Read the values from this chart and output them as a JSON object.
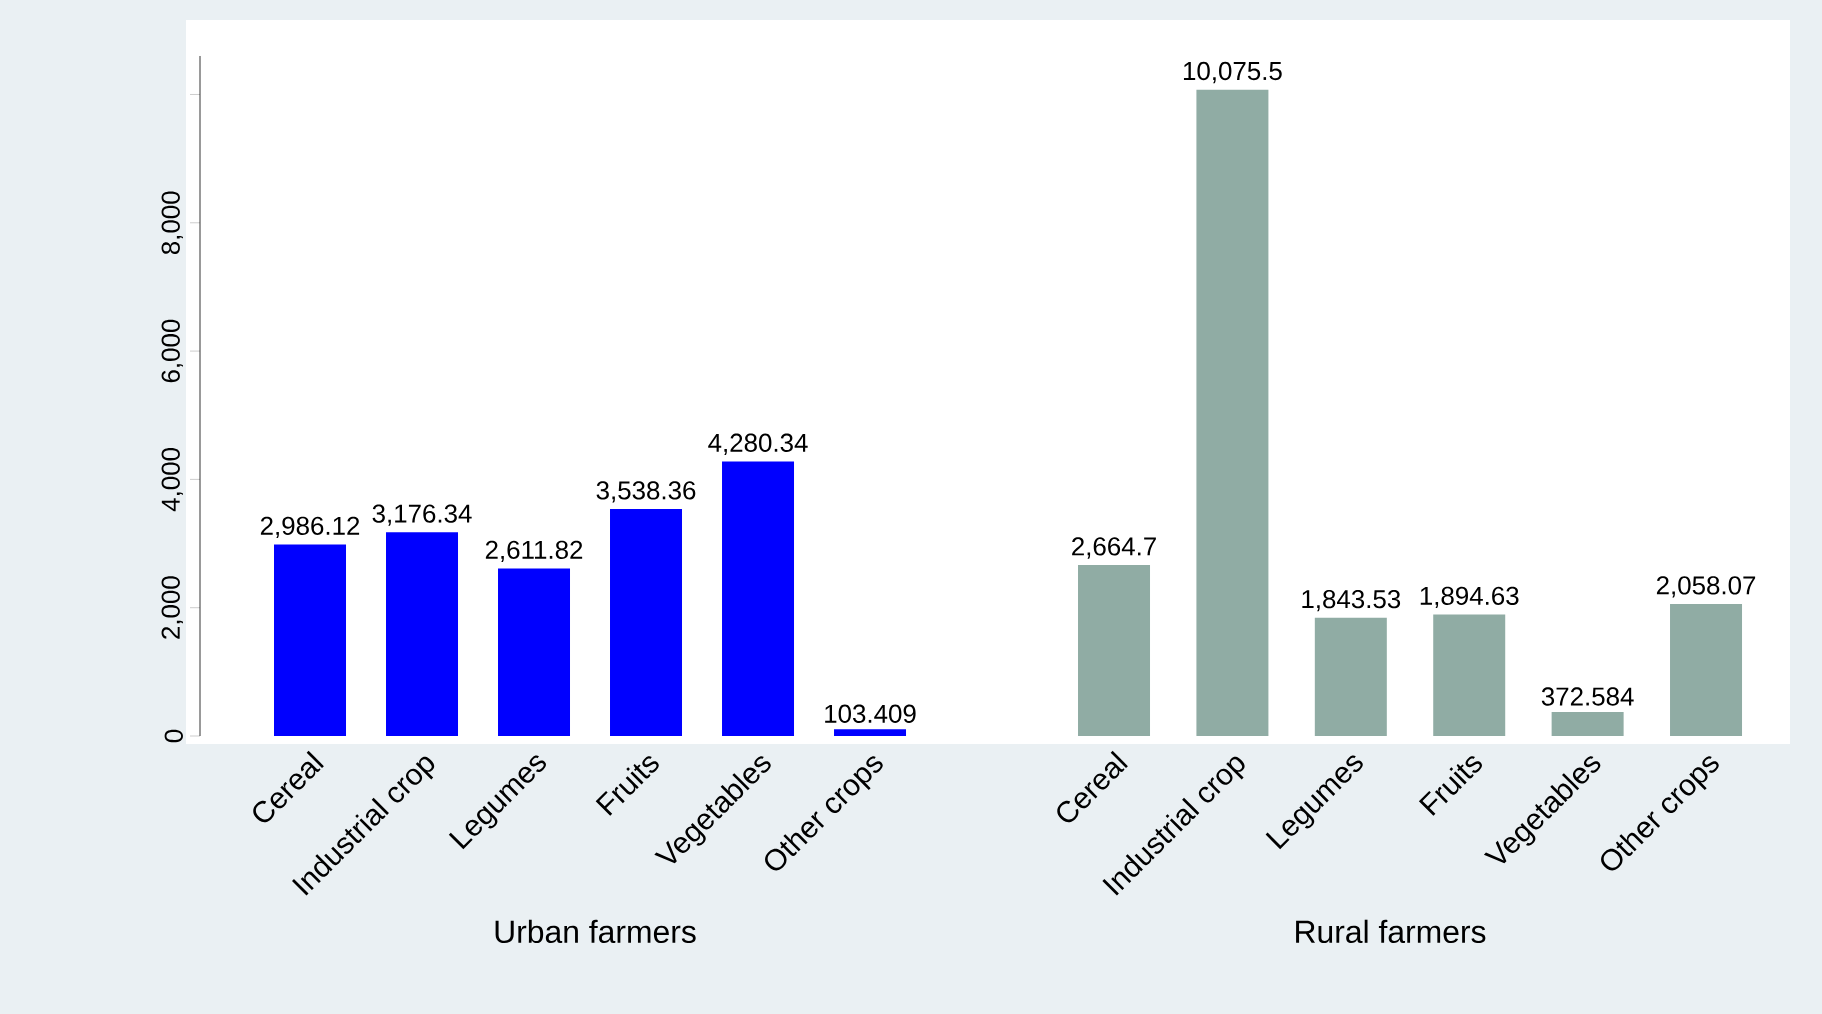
{
  "chart_data": [
    {
      "type": "bar",
      "xlabel": "Urban farmers",
      "categories": [
        "Cereal",
        "Industrial crop",
        "Legumes",
        "Fruits",
        "Vegetables",
        "Other crops"
      ],
      "values": [
        2986.12,
        3176.34,
        2611.82,
        3538.36,
        4280.34,
        103.409
      ],
      "color": "#0000ff",
      "value_labels": [
        "2,986.12",
        "3,176.34",
        "2,611.82",
        "3,538.36",
        "4,280.34",
        "103.409"
      ],
      "ylim": [
        0,
        10600
      ],
      "yticks": [
        0,
        {
          "value": 2000,
          "label": "2,000"
        },
        {
          "value": 4000,
          "label": "4,000"
        },
        {
          "value": 6000,
          "label": "6,000"
        },
        {
          "value": 8000,
          "label": "8,000"
        },
        {
          "value": 10000,
          "label": null
        }
      ]
    },
    {
      "type": "bar",
      "xlabel": "Rural farmers",
      "categories": [
        "Cereal",
        "Industrial crop",
        "Legumes",
        "Fruits",
        "Vegetables",
        "Other crops"
      ],
      "values": [
        2664.7,
        10075.5,
        1843.53,
        1894.63,
        372.584,
        2058.07
      ],
      "color": "#90aca4",
      "value_labels": [
        "2,664.7",
        "10,075.5",
        "1,843.53",
        "1,894.63",
        "372.584",
        "2,058.07"
      ],
      "tick_labels": "x"
    }
  ]
}
